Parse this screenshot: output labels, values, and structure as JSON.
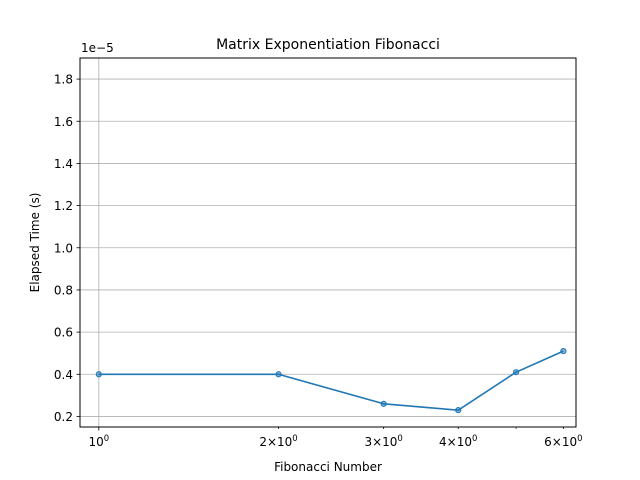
{
  "chart_data": {
    "type": "line",
    "title": "Matrix Exponentiation Fibonacci",
    "xlabel": "Fibonacci Number",
    "ylabel": "Elapsed Time (s)",
    "y_offset_label": "1e−5",
    "x_scale": "log",
    "xlim": [
      0.93,
      6.3
    ],
    "ylim": [
      0.15,
      1.9
    ],
    "grid": true,
    "color": "#1f77b4",
    "x_ticks": [
      {
        "value": 1,
        "label": "10^0"
      },
      {
        "value": 2,
        "label": "2×10^0"
      },
      {
        "value": 3,
        "label": "3×10^0"
      },
      {
        "value": 4,
        "label": "4×10^0"
      },
      {
        "value": 6,
        "label": "6×10^0"
      }
    ],
    "x_minor_ticks": [
      5
    ],
    "y_ticks": [
      {
        "value": 0.2,
        "label": "0.2"
      },
      {
        "value": 0.4,
        "label": "0.4"
      },
      {
        "value": 0.6,
        "label": "0.6"
      },
      {
        "value": 0.8,
        "label": "0.8"
      },
      {
        "value": 1.0,
        "label": "1.0"
      },
      {
        "value": 1.2,
        "label": "1.2"
      },
      {
        "value": 1.4,
        "label": "1.4"
      },
      {
        "value": 1.6,
        "label": "1.6"
      },
      {
        "value": 1.8,
        "label": "1.8"
      }
    ],
    "series": [
      {
        "x": [
          1,
          2,
          3,
          4,
          5,
          6
        ],
        "y": [
          0.4,
          0.4,
          0.26,
          0.23,
          0.41,
          0.51
        ]
      }
    ]
  }
}
